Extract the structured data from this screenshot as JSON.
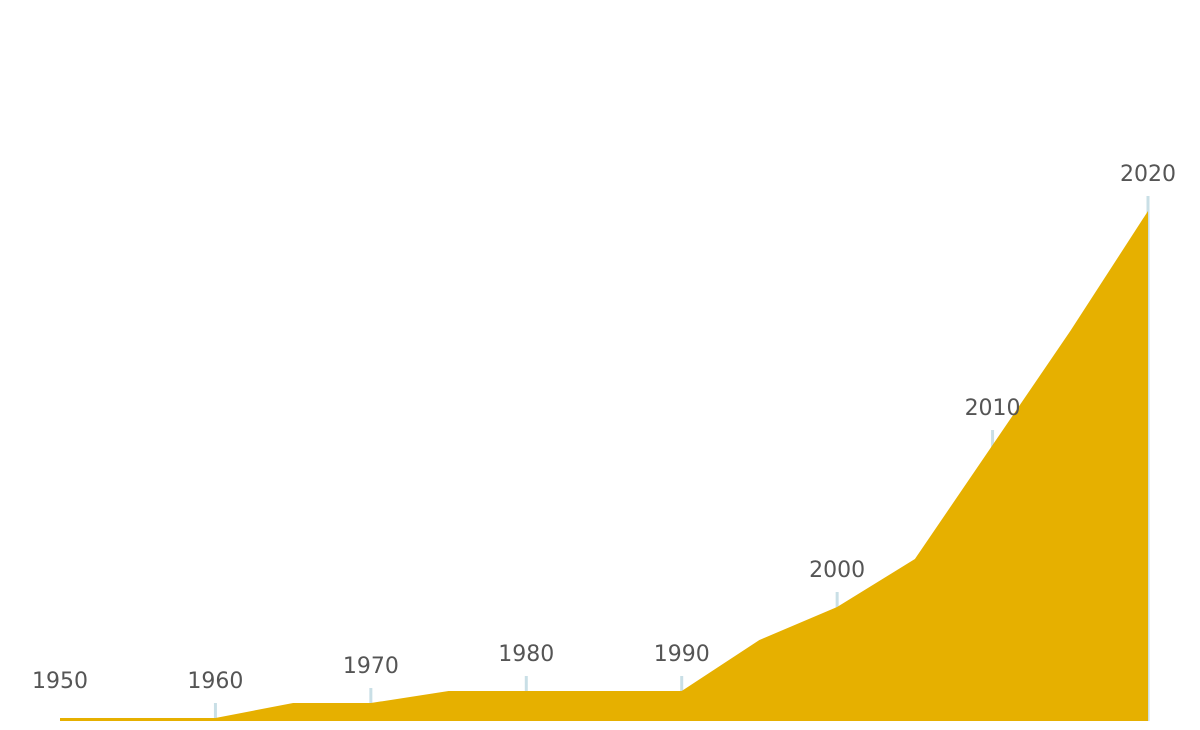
{
  "chart_data": {
    "type": "area",
    "x": [
      1950,
      1955,
      1960,
      1965,
      1970,
      1975,
      1980,
      1985,
      1990,
      1995,
      2000,
      2005,
      2010,
      2015,
      2020
    ],
    "values": [
      1,
      1,
      1,
      6,
      6,
      10,
      10,
      10,
      10,
      27,
      38,
      54,
      92,
      130,
      170
    ],
    "ylim": [
      0,
      175
    ],
    "xlim": [
      1950,
      2020
    ],
    "decade_labels": [
      "1950",
      "1960",
      "1970",
      "1980",
      "1990",
      "2000",
      "2010",
      "2020"
    ],
    "decade_years": [
      1950,
      1960,
      1970,
      1980,
      1990,
      2000,
      2010,
      2020
    ],
    "title": "",
    "xlabel": "",
    "ylabel": "",
    "grid": false,
    "colors": {
      "area": "#E6B000",
      "marker_line": "#C9DFE6",
      "label_text": "#555555",
      "background": "#FFFFFF"
    }
  }
}
